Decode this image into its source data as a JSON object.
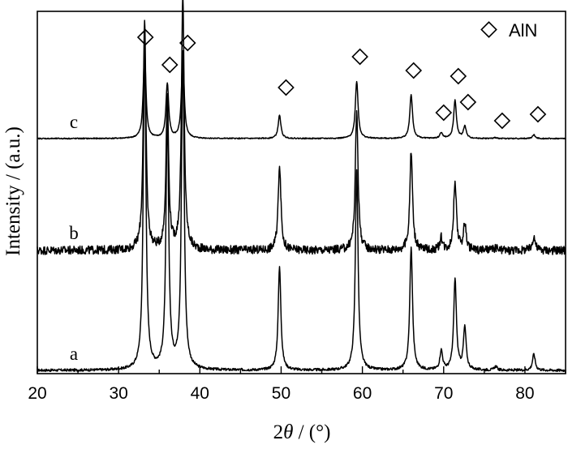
{
  "chart_data": {
    "type": "line",
    "title": "",
    "xlabel_prefix": "2",
    "xlabel_symbol": "θ",
    "xlabel_suffix": " / (°)",
    "ylabel": "Intensity / (a.u.)",
    "xlim": [
      20,
      85
    ],
    "xticks": [
      20,
      30,
      40,
      50,
      60,
      70,
      80
    ],
    "yticks_shown": false,
    "legend": {
      "marker": "diamond",
      "label": "AlN",
      "position": "top-right"
    },
    "peaks_2theta": [
      33.2,
      36.0,
      37.9,
      49.8,
      59.3,
      66.0,
      69.7,
      71.4,
      72.6,
      76.4,
      81.1
    ],
    "series": [
      {
        "name": "a",
        "baseline": 0.0,
        "peak_heights": [
          1.0,
          0.78,
          0.98,
          0.32,
          0.62,
          0.38,
          0.06,
          0.28,
          0.13,
          0.012,
          0.05
        ],
        "noise": 0.004
      },
      {
        "name": "b",
        "baseline": 0.0,
        "peak_heights": [
          0.95,
          0.62,
          1.05,
          0.36,
          0.58,
          0.41,
          0.05,
          0.29,
          0.11,
          0.01,
          0.06
        ],
        "noise": 0.018
      },
      {
        "name": "c",
        "baseline": 0.0,
        "peak_heights": [
          0.92,
          0.59,
          0.88,
          0.25,
          0.62,
          0.47,
          0.06,
          0.41,
          0.13,
          0.01,
          0.04
        ],
        "noise": 0.006
      }
    ],
    "phase_markers": [
      {
        "phase": "AlN",
        "x": 33.3
      },
      {
        "phase": "AlN",
        "x": 36.3
      },
      {
        "phase": "AlN",
        "x": 38.5
      },
      {
        "phase": "AlN",
        "x": 50.6
      },
      {
        "phase": "AlN",
        "x": 59.7
      },
      {
        "phase": "AlN",
        "x": 66.3
      },
      {
        "phase": "AlN",
        "x": 70.0
      },
      {
        "phase": "AlN",
        "x": 71.8
      },
      {
        "phase": "AlN",
        "x": 73.0
      },
      {
        "phase": "AlN",
        "x": 77.2
      },
      {
        "phase": "AlN",
        "x": 81.6
      }
    ]
  }
}
